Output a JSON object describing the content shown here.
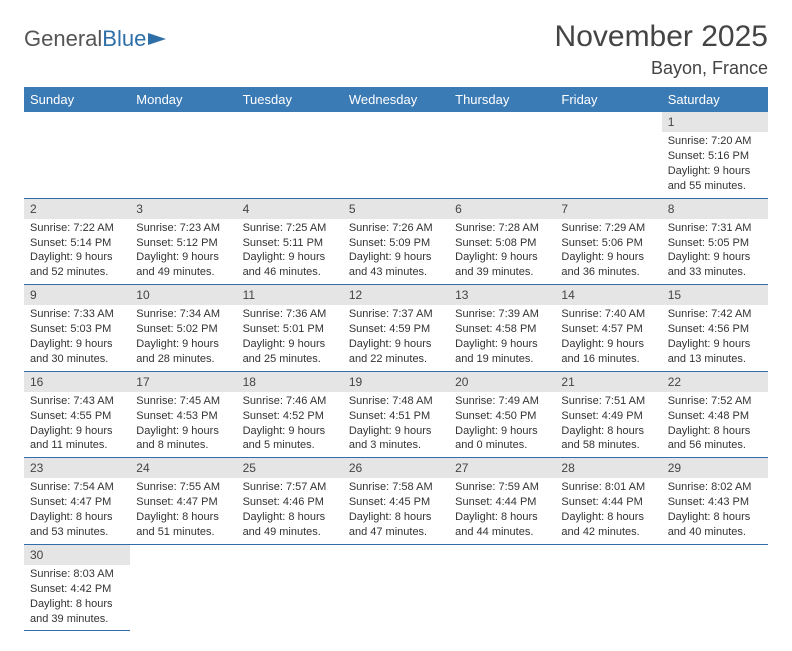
{
  "brand": {
    "part1": "General",
    "part2": "Blue"
  },
  "title": "November 2025",
  "location": "Bayon, France",
  "colors": {
    "header_bg": "#3a7ab5",
    "header_text": "#ffffff",
    "daynum_bg": "#e5e5e5",
    "border": "#2f6fa8",
    "text": "#333333",
    "brand_gray": "#555555",
    "brand_blue": "#2f6fa8"
  },
  "typography": {
    "month_fontsize": 30,
    "location_fontsize": 18,
    "th_fontsize": 13,
    "cell_fontsize": 11
  },
  "columns": [
    "Sunday",
    "Monday",
    "Tuesday",
    "Wednesday",
    "Thursday",
    "Friday",
    "Saturday"
  ],
  "weeks": [
    [
      null,
      null,
      null,
      null,
      null,
      null,
      {
        "n": "1",
        "sr": "Sunrise: 7:20 AM",
        "ss": "Sunset: 5:16 PM",
        "dl": "Daylight: 9 hours and 55 minutes."
      }
    ],
    [
      {
        "n": "2",
        "sr": "Sunrise: 7:22 AM",
        "ss": "Sunset: 5:14 PM",
        "dl": "Daylight: 9 hours and 52 minutes."
      },
      {
        "n": "3",
        "sr": "Sunrise: 7:23 AM",
        "ss": "Sunset: 5:12 PM",
        "dl": "Daylight: 9 hours and 49 minutes."
      },
      {
        "n": "4",
        "sr": "Sunrise: 7:25 AM",
        "ss": "Sunset: 5:11 PM",
        "dl": "Daylight: 9 hours and 46 minutes."
      },
      {
        "n": "5",
        "sr": "Sunrise: 7:26 AM",
        "ss": "Sunset: 5:09 PM",
        "dl": "Daylight: 9 hours and 43 minutes."
      },
      {
        "n": "6",
        "sr": "Sunrise: 7:28 AM",
        "ss": "Sunset: 5:08 PM",
        "dl": "Daylight: 9 hours and 39 minutes."
      },
      {
        "n": "7",
        "sr": "Sunrise: 7:29 AM",
        "ss": "Sunset: 5:06 PM",
        "dl": "Daylight: 9 hours and 36 minutes."
      },
      {
        "n": "8",
        "sr": "Sunrise: 7:31 AM",
        "ss": "Sunset: 5:05 PM",
        "dl": "Daylight: 9 hours and 33 minutes."
      }
    ],
    [
      {
        "n": "9",
        "sr": "Sunrise: 7:33 AM",
        "ss": "Sunset: 5:03 PM",
        "dl": "Daylight: 9 hours and 30 minutes."
      },
      {
        "n": "10",
        "sr": "Sunrise: 7:34 AM",
        "ss": "Sunset: 5:02 PM",
        "dl": "Daylight: 9 hours and 28 minutes."
      },
      {
        "n": "11",
        "sr": "Sunrise: 7:36 AM",
        "ss": "Sunset: 5:01 PM",
        "dl": "Daylight: 9 hours and 25 minutes."
      },
      {
        "n": "12",
        "sr": "Sunrise: 7:37 AM",
        "ss": "Sunset: 4:59 PM",
        "dl": "Daylight: 9 hours and 22 minutes."
      },
      {
        "n": "13",
        "sr": "Sunrise: 7:39 AM",
        "ss": "Sunset: 4:58 PM",
        "dl": "Daylight: 9 hours and 19 minutes."
      },
      {
        "n": "14",
        "sr": "Sunrise: 7:40 AM",
        "ss": "Sunset: 4:57 PM",
        "dl": "Daylight: 9 hours and 16 minutes."
      },
      {
        "n": "15",
        "sr": "Sunrise: 7:42 AM",
        "ss": "Sunset: 4:56 PM",
        "dl": "Daylight: 9 hours and 13 minutes."
      }
    ],
    [
      {
        "n": "16",
        "sr": "Sunrise: 7:43 AM",
        "ss": "Sunset: 4:55 PM",
        "dl": "Daylight: 9 hours and 11 minutes."
      },
      {
        "n": "17",
        "sr": "Sunrise: 7:45 AM",
        "ss": "Sunset: 4:53 PM",
        "dl": "Daylight: 9 hours and 8 minutes."
      },
      {
        "n": "18",
        "sr": "Sunrise: 7:46 AM",
        "ss": "Sunset: 4:52 PM",
        "dl": "Daylight: 9 hours and 5 minutes."
      },
      {
        "n": "19",
        "sr": "Sunrise: 7:48 AM",
        "ss": "Sunset: 4:51 PM",
        "dl": "Daylight: 9 hours and 3 minutes."
      },
      {
        "n": "20",
        "sr": "Sunrise: 7:49 AM",
        "ss": "Sunset: 4:50 PM",
        "dl": "Daylight: 9 hours and 0 minutes."
      },
      {
        "n": "21",
        "sr": "Sunrise: 7:51 AM",
        "ss": "Sunset: 4:49 PM",
        "dl": "Daylight: 8 hours and 58 minutes."
      },
      {
        "n": "22",
        "sr": "Sunrise: 7:52 AM",
        "ss": "Sunset: 4:48 PM",
        "dl": "Daylight: 8 hours and 56 minutes."
      }
    ],
    [
      {
        "n": "23",
        "sr": "Sunrise: 7:54 AM",
        "ss": "Sunset: 4:47 PM",
        "dl": "Daylight: 8 hours and 53 minutes."
      },
      {
        "n": "24",
        "sr": "Sunrise: 7:55 AM",
        "ss": "Sunset: 4:47 PM",
        "dl": "Daylight: 8 hours and 51 minutes."
      },
      {
        "n": "25",
        "sr": "Sunrise: 7:57 AM",
        "ss": "Sunset: 4:46 PM",
        "dl": "Daylight: 8 hours and 49 minutes."
      },
      {
        "n": "26",
        "sr": "Sunrise: 7:58 AM",
        "ss": "Sunset: 4:45 PM",
        "dl": "Daylight: 8 hours and 47 minutes."
      },
      {
        "n": "27",
        "sr": "Sunrise: 7:59 AM",
        "ss": "Sunset: 4:44 PM",
        "dl": "Daylight: 8 hours and 44 minutes."
      },
      {
        "n": "28",
        "sr": "Sunrise: 8:01 AM",
        "ss": "Sunset: 4:44 PM",
        "dl": "Daylight: 8 hours and 42 minutes."
      },
      {
        "n": "29",
        "sr": "Sunrise: 8:02 AM",
        "ss": "Sunset: 4:43 PM",
        "dl": "Daylight: 8 hours and 40 minutes."
      }
    ],
    [
      {
        "n": "30",
        "sr": "Sunrise: 8:03 AM",
        "ss": "Sunset: 4:42 PM",
        "dl": "Daylight: 8 hours and 39 minutes."
      },
      null,
      null,
      null,
      null,
      null,
      null
    ]
  ]
}
